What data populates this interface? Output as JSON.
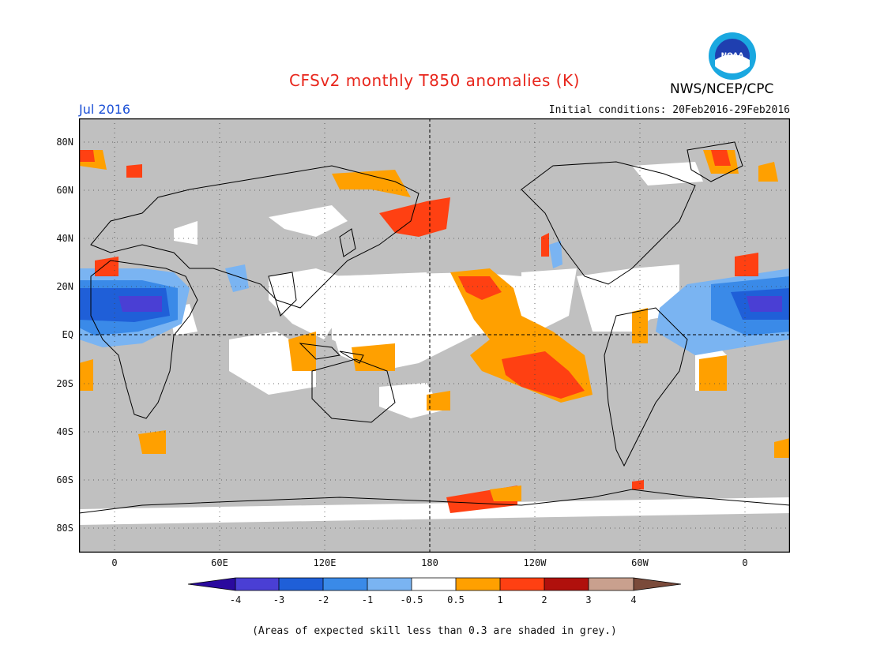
{
  "header": {
    "title": "CFSv2 monthly T850 anomalies (K)",
    "month": "Jul 2016",
    "initial_conditions": "Initial conditions: 20Feb2016-29Feb2016",
    "agency": "NWS/NCEP/CPC",
    "logo_text": "NOAA"
  },
  "map": {
    "lat_labels": [
      "80N",
      "60N",
      "40N",
      "20N",
      "EQ",
      "20S",
      "40S",
      "60S",
      "80S"
    ],
    "lon_labels": [
      "0",
      "60E",
      "120E",
      "180",
      "120W",
      "60W",
      "0"
    ],
    "colors": {
      "skill_grey": "#c0c0c0",
      "land_outline": "#000000"
    }
  },
  "colorbar": {
    "labels": [
      "-4",
      "-3",
      "-2",
      "-1",
      "-0.5",
      "0.5",
      "1",
      "2",
      "3",
      "4"
    ],
    "colors": [
      "#2a0a9e",
      "#4a3fd4",
      "#1f5fd8",
      "#3a8ae8",
      "#7ab4f2",
      "#ffffff",
      "#ffa000",
      "#ff4012",
      "#b0100c",
      "#c9a08e",
      "#7a4a3a"
    ]
  },
  "footer": {
    "note": "(Areas of expected skill less than 0.3 are shaded in grey.)"
  }
}
